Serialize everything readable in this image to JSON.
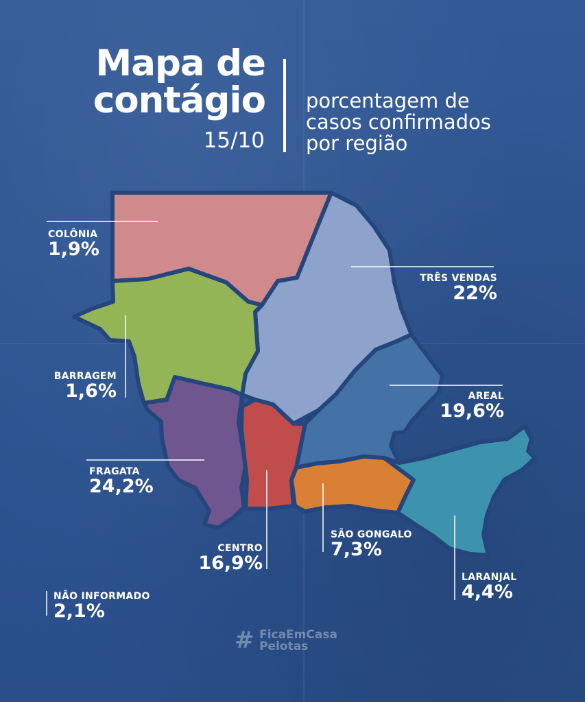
{
  "title": {
    "line1": "Mapa de",
    "line2": "contágio",
    "date": "15/10"
  },
  "subtitle": {
    "line1": "porcentagem de",
    "line2": "casos confirmados",
    "line3": "por região"
  },
  "regions": {
    "colonia": {
      "name": "COLÔNIA",
      "value": "1,9%",
      "color": "#d08a8b"
    },
    "tres_vendas": {
      "name": "TRÊS VENDAS",
      "value": "22%",
      "color": "#8ea3cb"
    },
    "barragem": {
      "name": "BARRAGEM",
      "value": "1,6%",
      "color": "#94b556"
    },
    "areal": {
      "name": "AREAL",
      "value": "19,6%",
      "color": "#4472a6"
    },
    "fragata": {
      "name": "FRAGATA",
      "value": "24,2%",
      "color": "#6f568e"
    },
    "centro": {
      "name": "CENTRO",
      "value": "16,9%",
      "color": "#c04c4c"
    },
    "sao_goncalo": {
      "name": "SÃO GONGALO",
      "value": "7,3%",
      "color": "#d98034"
    },
    "laranjal": {
      "name": "LARANJAL",
      "value": "4,4%",
      "color": "#3d93ad"
    },
    "nao_informado": {
      "name": "NÃO INFORMADO",
      "value": "2,1%"
    }
  },
  "watermark": {
    "hash": "#",
    "line1": "FicaEmCasa",
    "line2": "Pelotas"
  }
}
